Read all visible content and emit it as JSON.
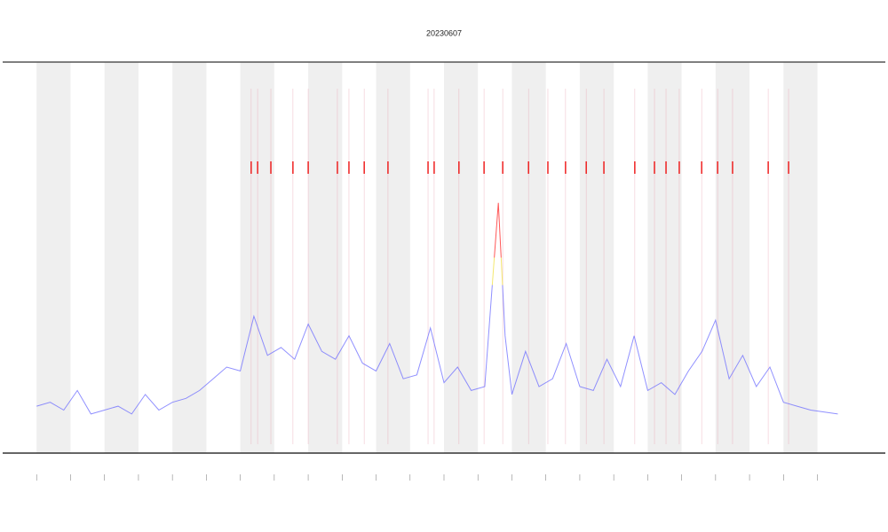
{
  "chart_data": {
    "type": "line",
    "title": "20230607",
    "xlim": [
      0,
      26
    ],
    "ylim": [
      0,
      100
    ],
    "xticks": [
      1,
      2,
      3,
      4,
      5,
      6,
      7,
      8,
      9,
      10,
      11,
      12,
      13,
      14,
      15,
      16,
      17,
      18,
      19,
      20,
      21,
      22,
      23,
      24
    ],
    "x": [
      1.0,
      1.4,
      1.8,
      2.2,
      2.6,
      3.0,
      3.4,
      3.8,
      4.2,
      4.6,
      5.0,
      5.4,
      5.8,
      6.2,
      6.6,
      7.0,
      7.4,
      7.8,
      8.2,
      8.6,
      9.0,
      9.4,
      9.8,
      10.2,
      10.6,
      11.0,
      11.4,
      11.8,
      12.2,
      12.6,
      13.0,
      13.4,
      13.8,
      14.2,
      14.6,
      14.8,
      15.0,
      15.4,
      15.8,
      16.2,
      16.6,
      17.0,
      17.4,
      17.8,
      18.2,
      18.6,
      19.0,
      19.4,
      19.8,
      20.2,
      20.6,
      21.0,
      21.4,
      21.8,
      22.2,
      22.6,
      23.0,
      23.4,
      23.8,
      24.6
    ],
    "series": [
      {
        "color": "#6b6bff",
        "values": [
          12,
          13,
          11,
          16,
          10,
          11,
          12,
          10,
          15,
          11,
          13,
          14,
          16,
          19,
          22,
          21,
          35,
          25,
          27,
          24,
          33,
          26,
          24,
          30,
          23,
          21,
          28,
          19,
          20,
          32,
          18,
          22,
          16,
          17,
          64,
          30,
          15,
          26,
          17,
          19,
          28,
          17,
          16,
          24,
          17,
          30,
          16,
          18,
          15,
          21,
          26,
          34,
          19,
          25,
          17,
          22,
          13,
          12,
          11,
          10
        ]
      }
    ],
    "events": {
      "color": "#ee1111",
      "x": [
        7.32,
        7.51,
        7.9,
        8.55,
        9.0,
        9.86,
        10.2,
        10.65,
        11.35,
        12.53,
        12.71,
        13.44,
        14.18,
        14.73,
        15.49,
        16.06,
        16.58,
        17.19,
        17.71,
        18.62,
        19.2,
        19.54,
        19.93,
        20.59,
        21.06,
        21.5,
        22.55,
        23.15
      ]
    }
  }
}
